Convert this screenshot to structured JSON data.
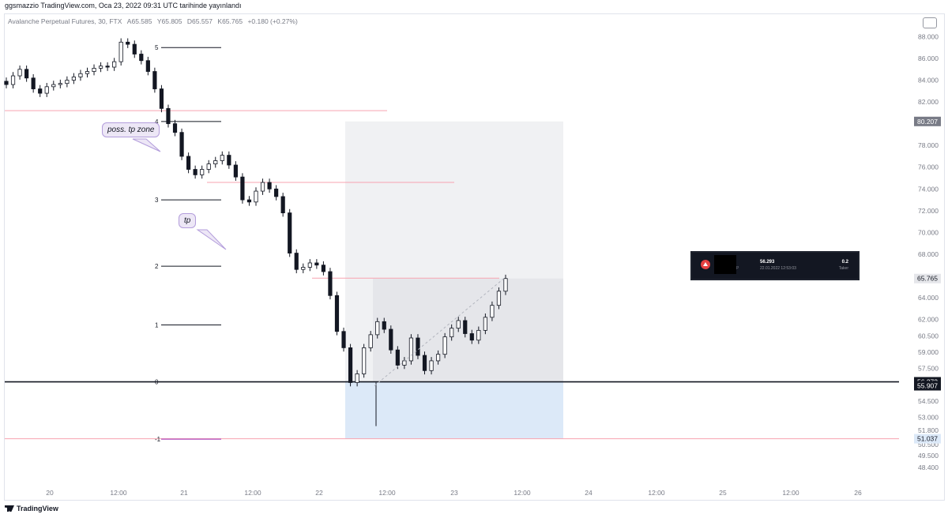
{
  "top_caption": "ggsmazzio TradingView.com, Oca 23, 2022 09:31 UTC tarihinde yayınlandı",
  "header": {
    "symbol": "Avalanche Perpetual Futures, 30, FTX",
    "open_label": "A",
    "open": "65.585",
    "high_label": "Y",
    "high": "65.805",
    "low_label": "D",
    "low": "65.557",
    "close_label": "K",
    "close": "65.765",
    "change": "+0.180 (+0.27%)"
  },
  "footer": {
    "logo_text": "TradingView"
  },
  "colors": {
    "candle": "#131722",
    "red_line": "#f7a3b0",
    "fib_line": "#131722",
    "purple_line": "#9c27b0",
    "stop_zone": "#dce9f8",
    "target_zone": "#f0f1f3",
    "target_zone_inner": "#e5e6ea"
  },
  "annotations": {
    "poss_tp_zone": "poss. tp zone",
    "tp": "tp"
  },
  "position_widget": {
    "icon": "avalanche-icon",
    "symbol_suffix": "P",
    "price": "56.293",
    "date": "22.01.2022 12:53:03",
    "qty": "0.2",
    "side": "Taker"
  },
  "chart_data": {
    "type": "candlestick",
    "title": "Avalanche Perpetual Futures, 30, FTX",
    "x_ticks": [
      "20",
      "12:00",
      "21",
      "12:00",
      "22",
      "12:00",
      "23",
      "12:00",
      "24",
      "12:00",
      "25",
      "12:00",
      "26"
    ],
    "y_ticks": [
      "88.000",
      "86.000",
      "84.000",
      "82.000",
      "78.000",
      "76.000",
      "74.000",
      "72.000",
      "70.000",
      "68.000",
      "64.000",
      "62.000",
      "60.500",
      "59.000",
      "57.500",
      "54.500",
      "53.000",
      "51.800",
      "50.500",
      "49.500",
      "48.400"
    ],
    "ylim": [
      48.4,
      90.0
    ],
    "price_labels": [
      {
        "value": 80.207,
        "text": "80.207",
        "color": "#787b86"
      },
      {
        "value": 65.765,
        "text": "65.765",
        "color": "#e5e6ea"
      },
      {
        "value": 56.272,
        "text": "56.272",
        "color": "#131722"
      },
      {
        "value": 55.907,
        "text": "55.907",
        "color": "#131722"
      },
      {
        "value": 51.037,
        "text": "51.037",
        "color": "#dce9f8"
      }
    ],
    "fib_levels": [
      {
        "label": "5",
        "value": 87.0
      },
      {
        "label": "4",
        "value": 80.2
      },
      {
        "label": "3",
        "value": 73.0
      },
      {
        "label": "2",
        "value": 66.9
      },
      {
        "label": "1",
        "value": 61.5
      },
      {
        "label": "0",
        "value": 56.27
      },
      {
        "label": "-1",
        "value": 51.0
      }
    ],
    "horizontal_lines": [
      {
        "value": 81.2,
        "color": "red"
      },
      {
        "value": 74.6,
        "color": "red"
      },
      {
        "value": 65.8,
        "color": "red"
      },
      {
        "value": 56.27,
        "color": "black"
      },
      {
        "value": 51.037,
        "color": "red"
      }
    ],
    "position": {
      "entry": 56.272,
      "target": 80.207,
      "stop": 51.037,
      "current": 65.765
    },
    "candles_close": [
      83.6,
      84.4,
      85.0,
      84.2,
      83.2,
      82.8,
      83.4,
      83.6,
      83.7,
      84.0,
      84.3,
      84.6,
      84.8,
      85.1,
      85.3,
      85.2,
      85.7,
      87.5,
      87.3,
      86.4,
      85.8,
      84.8,
      83.2,
      81.4,
      80.0,
      79.2,
      77.0,
      75.8,
      75.3,
      75.8,
      76.3,
      76.6,
      77.1,
      76.2,
      75.1,
      73.0,
      72.8,
      73.8,
      74.6,
      74.0,
      73.3,
      71.8,
      68.1,
      66.6,
      66.8,
      67.2,
      67.0,
      66.4,
      64.2,
      60.9,
      59.4,
      56.2,
      57.0,
      59.4,
      60.6,
      61.8,
      61.1,
      59.2,
      57.8,
      58.2,
      60.3,
      58.7,
      57.3,
      58.2,
      58.8,
      60.4,
      61.2,
      61.9,
      60.7,
      60.1,
      61.0,
      62.2,
      63.3,
      64.6,
      65.765
    ]
  }
}
